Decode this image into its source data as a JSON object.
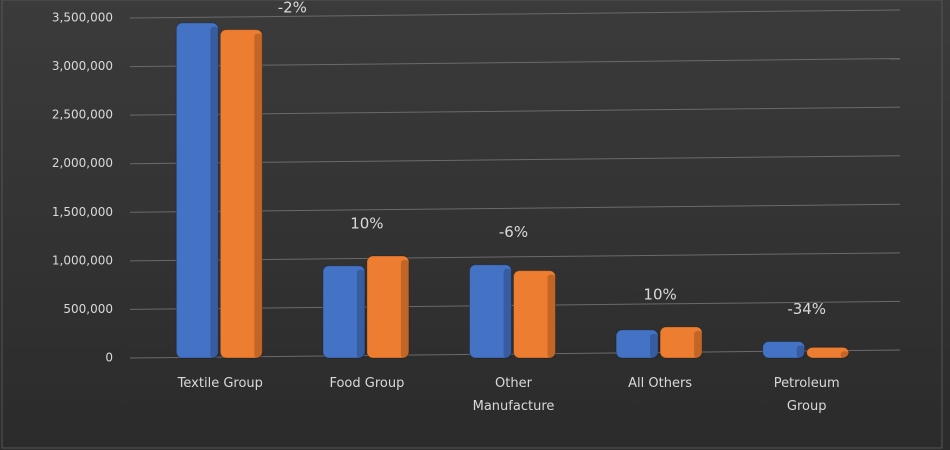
{
  "chart_data": {
    "type": "bar",
    "categories": [
      "Textile Group",
      "Food Group",
      "Other Manufacture",
      "All Others",
      "Petroleum Group"
    ],
    "series": [
      {
        "color": "#4472c4",
        "values": [
          3450000,
          950000,
          960000,
          290000,
          170000
        ]
      },
      {
        "color": "#ed7d31",
        "values": [
          3380000,
          1050000,
          900000,
          320000,
          110000
        ]
      }
    ],
    "annotations": [
      "-2%",
      "10%",
      "-6%",
      "10%",
      "-34%"
    ],
    "ylim": [
      0,
      3500000
    ],
    "yticks": [
      0,
      {
        "value": 500000,
        "label": "500,000"
      },
      {
        "value": 1000000,
        "label": "1,000,000"
      },
      {
        "value": 1500000,
        "label": "1,500,000"
      },
      {
        "value": 2000000,
        "label": "2,000,000"
      },
      {
        "value": 2500000,
        "label": "2,500,000"
      },
      {
        "value": 3000000,
        "label": "3,000,000"
      },
      {
        "value": 3500000,
        "label": "3,500,000"
      }
    ],
    "grid": true
  }
}
